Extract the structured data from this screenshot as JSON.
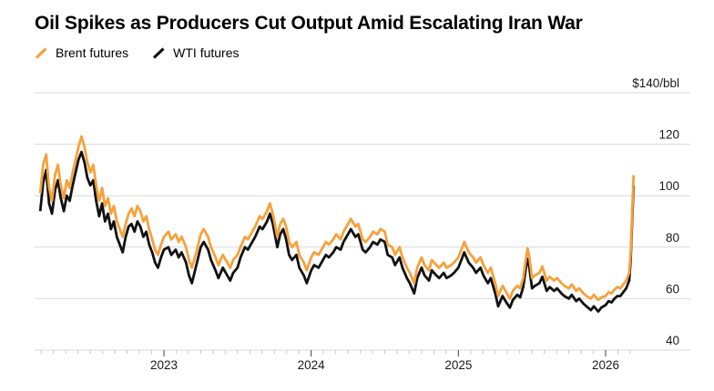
{
  "header": {
    "title": "Oil Spikes as Producers Cut Output Amid Escalating Iran War"
  },
  "axis": {
    "y_labels": [
      {
        "value": 140,
        "text": "$140/bbl"
      },
      {
        "value": 120,
        "text": "120"
      },
      {
        "value": 100,
        "text": "100"
      },
      {
        "value": 80,
        "text": "80"
      },
      {
        "value": 60,
        "text": "60"
      },
      {
        "value": 40,
        "text": "40"
      }
    ],
    "x_labels": [
      {
        "value": 2023,
        "text": "2023"
      },
      {
        "value": 2024,
        "text": "2024"
      },
      {
        "value": 2025,
        "text": "2025"
      },
      {
        "value": 2026,
        "text": "2026"
      }
    ],
    "grid_color": "#d9d9d9",
    "minor_tick_color": "#c6c6c6",
    "year_tick_color": "#444444",
    "label_color": "#1a1a1a"
  },
  "chart_data": {
    "type": "line",
    "title": "Oil Spikes as Producers Cut Output Amid Escalating Iran War",
    "unit": "$/bbl",
    "xlabel": "",
    "ylabel": "$140/bbl",
    "ylim": [
      40,
      140
    ],
    "xlim": [
      2022.15,
      2026.27
    ],
    "yticks": [
      40,
      60,
      80,
      100,
      120,
      140
    ],
    "xticks": [
      2023,
      2024,
      2025,
      2026
    ],
    "grid": "horizontal",
    "legend_position": "top-left",
    "x_unit": "decimal_year",
    "series": [
      {
        "name": "Brent futures",
        "color": "#F6A13B",
        "column": 1
      },
      {
        "name": "WTI futures",
        "color": "#111111",
        "column": 2
      }
    ],
    "points": [
      [
        2022.16,
        101,
        94
      ],
      [
        2022.18,
        112,
        105
      ],
      [
        2022.2,
        116,
        110
      ],
      [
        2022.22,
        103,
        97
      ],
      [
        2022.24,
        98,
        93
      ],
      [
        2022.26,
        108,
        102
      ],
      [
        2022.28,
        112,
        106
      ],
      [
        2022.3,
        104,
        99
      ],
      [
        2022.32,
        99,
        94
      ],
      [
        2022.34,
        106,
        100
      ],
      [
        2022.36,
        103,
        98
      ],
      [
        2022.38,
        109,
        104
      ],
      [
        2022.4,
        114,
        109
      ],
      [
        2022.42,
        119,
        114
      ],
      [
        2022.44,
        123,
        117
      ],
      [
        2022.46,
        119,
        113
      ],
      [
        2022.48,
        113,
        107
      ],
      [
        2022.5,
        109,
        104
      ],
      [
        2022.52,
        112,
        106
      ],
      [
        2022.54,
        104,
        98
      ],
      [
        2022.56,
        98,
        92
      ],
      [
        2022.58,
        103,
        97
      ],
      [
        2022.6,
        96,
        90
      ],
      [
        2022.62,
        99,
        93
      ],
      [
        2022.64,
        93,
        87
      ],
      [
        2022.66,
        96,
        90
      ],
      [
        2022.68,
        90,
        84
      ],
      [
        2022.7,
        87,
        81
      ],
      [
        2022.72,
        84,
        78
      ],
      [
        2022.74,
        89,
        84
      ],
      [
        2022.76,
        93,
        88
      ],
      [
        2022.78,
        95,
        89
      ],
      [
        2022.8,
        92,
        86
      ],
      [
        2022.82,
        96,
        90
      ],
      [
        2022.84,
        94,
        88
      ],
      [
        2022.86,
        90,
        84
      ],
      [
        2022.88,
        92,
        86
      ],
      [
        2022.9,
        87,
        81
      ],
      [
        2022.92,
        83,
        78
      ],
      [
        2022.94,
        79,
        74
      ],
      [
        2022.96,
        77,
        72
      ],
      [
        2022.98,
        81,
        76
      ],
      [
        2023.0,
        84,
        79
      ],
      [
        2023.03,
        86,
        80
      ],
      [
        2023.05,
        83,
        77
      ],
      [
        2023.08,
        85,
        79
      ],
      [
        2023.1,
        82,
        76
      ],
      [
        2023.12,
        84,
        78
      ],
      [
        2023.15,
        80,
        74
      ],
      [
        2023.17,
        75,
        69
      ],
      [
        2023.19,
        72,
        66
      ],
      [
        2023.22,
        78,
        73
      ],
      [
        2023.25,
        85,
        80
      ],
      [
        2023.27,
        87,
        82
      ],
      [
        2023.3,
        84,
        79
      ],
      [
        2023.32,
        80,
        75
      ],
      [
        2023.35,
        76,
        71
      ],
      [
        2023.37,
        73,
        68
      ],
      [
        2023.4,
        77,
        72
      ],
      [
        2023.42,
        75,
        70
      ],
      [
        2023.45,
        72,
        67
      ],
      [
        2023.47,
        75,
        70
      ],
      [
        2023.5,
        77,
        72
      ],
      [
        2023.52,
        80,
        76
      ],
      [
        2023.55,
        84,
        80
      ],
      [
        2023.57,
        83,
        79
      ],
      [
        2023.6,
        86,
        82
      ],
      [
        2023.62,
        88,
        84
      ],
      [
        2023.65,
        92,
        88
      ],
      [
        2023.67,
        91,
        87
      ],
      [
        2023.7,
        94,
        90
      ],
      [
        2023.72,
        97,
        93
      ],
      [
        2023.74,
        93,
        89
      ],
      [
        2023.77,
        84,
        80
      ],
      [
        2023.79,
        89,
        85
      ],
      [
        2023.81,
        91,
        87
      ],
      [
        2023.83,
        88,
        83
      ],
      [
        2023.85,
        82,
        77
      ],
      [
        2023.87,
        80,
        75
      ],
      [
        2023.9,
        82,
        77
      ],
      [
        2023.92,
        77,
        72
      ],
      [
        2023.95,
        74,
        69
      ],
      [
        2023.97,
        71,
        66
      ],
      [
        2024.0,
        76,
        71
      ],
      [
        2024.02,
        78,
        73
      ],
      [
        2024.05,
        77,
        72
      ],
      [
        2024.08,
        80,
        75
      ],
      [
        2024.1,
        82,
        77
      ],
      [
        2024.12,
        81,
        76
      ],
      [
        2024.15,
        83,
        78
      ],
      [
        2024.17,
        85,
        80
      ],
      [
        2024.2,
        83,
        79
      ],
      [
        2024.22,
        86,
        82
      ],
      [
        2024.25,
        89,
        85
      ],
      [
        2024.27,
        91,
        87
      ],
      [
        2024.3,
        88,
        84
      ],
      [
        2024.32,
        89,
        85
      ],
      [
        2024.35,
        83,
        79
      ],
      [
        2024.37,
        82,
        78
      ],
      [
        2024.4,
        84,
        80
      ],
      [
        2024.42,
        86,
        82
      ],
      [
        2024.45,
        85,
        81
      ],
      [
        2024.47,
        87,
        83
      ],
      [
        2024.5,
        86,
        82
      ],
      [
        2024.52,
        81,
        77
      ],
      [
        2024.55,
        80,
        76
      ],
      [
        2024.57,
        77,
        73
      ],
      [
        2024.6,
        80,
        76
      ],
      [
        2024.62,
        76,
        72
      ],
      [
        2024.65,
        72,
        68
      ],
      [
        2024.67,
        70,
        66
      ],
      [
        2024.7,
        66,
        62
      ],
      [
        2024.72,
        72,
        68
      ],
      [
        2024.75,
        76,
        72
      ],
      [
        2024.77,
        73,
        69
      ],
      [
        2024.8,
        71,
        67
      ],
      [
        2024.82,
        75,
        71
      ],
      [
        2024.85,
        73,
        69
      ],
      [
        2024.87,
        72,
        68
      ],
      [
        2024.9,
        74,
        70
      ],
      [
        2024.92,
        72,
        68
      ],
      [
        2024.95,
        73,
        69
      ],
      [
        2024.97,
        74,
        70
      ],
      [
        2025.0,
        76,
        72
      ],
      [
        2025.02,
        79,
        75
      ],
      [
        2025.04,
        82,
        78
      ],
      [
        2025.07,
        78,
        74
      ],
      [
        2025.1,
        76,
        72
      ],
      [
        2025.12,
        74,
        70
      ],
      [
        2025.15,
        76,
        72
      ],
      [
        2025.17,
        73,
        69
      ],
      [
        2025.2,
        70,
        66
      ],
      [
        2025.22,
        72,
        68
      ],
      [
        2025.25,
        66,
        62
      ],
      [
        2025.27,
        61,
        57
      ],
      [
        2025.3,
        65,
        61
      ],
      [
        2025.32,
        63,
        59
      ],
      [
        2025.35,
        60,
        56.5
      ],
      [
        2025.37,
        63,
        59.5
      ],
      [
        2025.4,
        65,
        61.5
      ],
      [
        2025.42,
        64,
        60.5
      ],
      [
        2025.44,
        68,
        64.5
      ],
      [
        2025.46,
        76,
        72.5
      ],
      [
        2025.47,
        79.5,
        75.5
      ],
      [
        2025.48,
        77,
        73
      ],
      [
        2025.5,
        68,
        64
      ],
      [
        2025.52,
        69,
        65
      ],
      [
        2025.55,
        70,
        66
      ],
      [
        2025.57,
        72.5,
        68.5
      ],
      [
        2025.6,
        67,
        63
      ],
      [
        2025.62,
        68.5,
        64.5
      ],
      [
        2025.65,
        67,
        63
      ],
      [
        2025.67,
        68,
        64
      ],
      [
        2025.7,
        66,
        62
      ],
      [
        2025.72,
        65,
        61
      ],
      [
        2025.75,
        64,
        60
      ],
      [
        2025.77,
        65.5,
        61.5
      ],
      [
        2025.8,
        63,
        59
      ],
      [
        2025.82,
        64,
        60
      ],
      [
        2025.85,
        62,
        58
      ],
      [
        2025.87,
        61,
        57
      ],
      [
        2025.9,
        60,
        55.5
      ],
      [
        2025.92,
        61.5,
        57
      ],
      [
        2025.95,
        59.5,
        55
      ],
      [
        2025.97,
        60.5,
        56.5
      ],
      [
        2026.0,
        61,
        57.5
      ],
      [
        2026.02,
        62.5,
        59
      ],
      [
        2026.04,
        62,
        58.5
      ],
      [
        2026.06,
        63.5,
        60
      ],
      [
        2026.08,
        64.5,
        61
      ],
      [
        2026.1,
        64,
        61
      ],
      [
        2026.12,
        65.5,
        62.5
      ],
      [
        2026.14,
        67,
        64
      ],
      [
        2026.16,
        70,
        67
      ],
      [
        2026.17,
        78,
        75
      ],
      [
        2026.18,
        93,
        90
      ],
      [
        2026.19,
        108,
        104
      ]
    ]
  }
}
